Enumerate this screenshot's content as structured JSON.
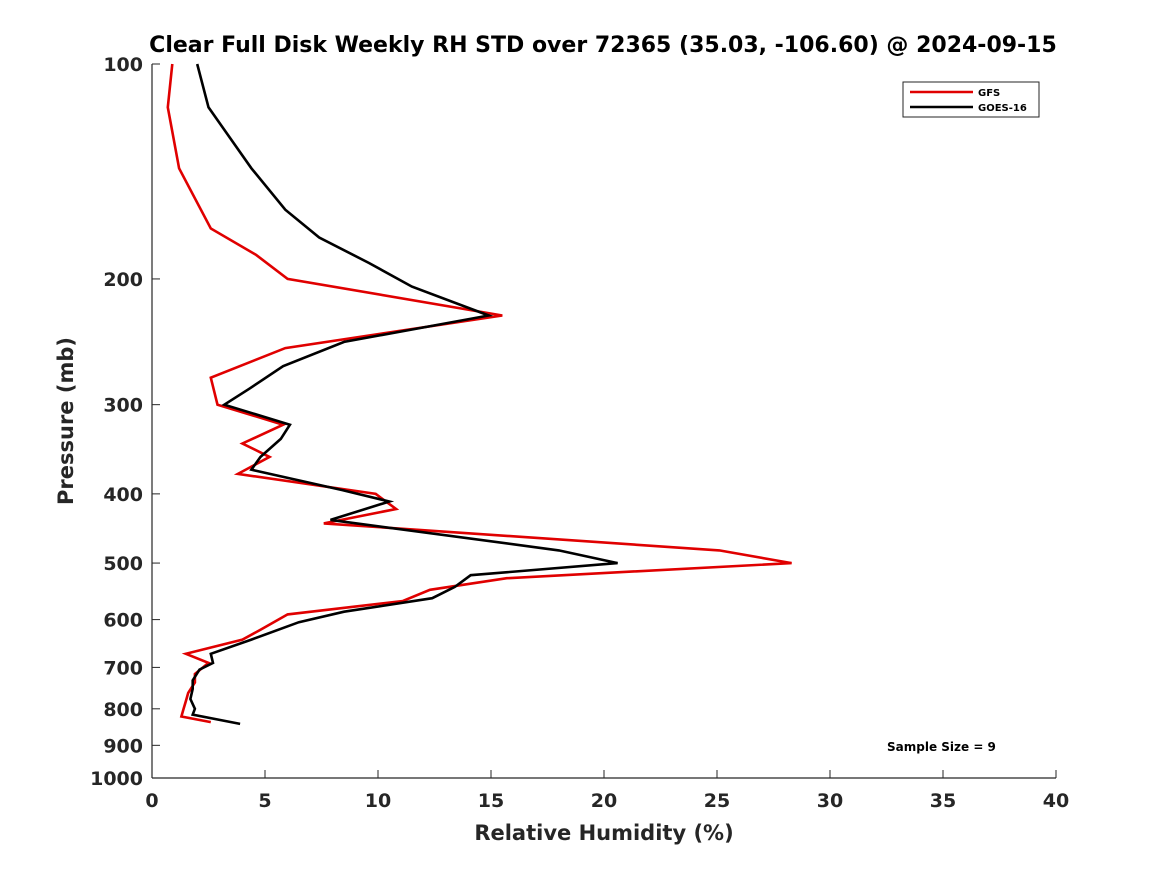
{
  "chart_data": {
    "type": "line",
    "title": "Clear Full Disk Weekly RH STD over 72365 (35.03, -106.60) @ 2024-09-15",
    "xlabel": "Relative Humidity (%)",
    "ylabel": "Pressure (mb)",
    "xlim": [
      0,
      40
    ],
    "ylim": [
      1000,
      100
    ],
    "y_scale": "log",
    "grid": false,
    "legend_position": "top-right",
    "x_ticks": [
      0,
      5,
      10,
      15,
      20,
      25,
      30,
      35,
      40
    ],
    "x_tick_labels": [
      "0",
      "5",
      "10",
      "15",
      "20",
      "25",
      "30",
      "35",
      "40"
    ],
    "y_ticks": [
      100,
      200,
      300,
      400,
      500,
      600,
      700,
      800,
      900,
      1000
    ],
    "y_tick_labels": [
      "100",
      "200",
      "300",
      "400",
      "500",
      "600",
      "700",
      "800",
      "900",
      "1000"
    ],
    "series": [
      {
        "name": "GFS",
        "color": "#e00000",
        "x": [
          0.9,
          0.7,
          1.2,
          2.6,
          4.6,
          6.0,
          15.5,
          5.9,
          2.6,
          2.9,
          5.8,
          4.0,
          5.2,
          3.8,
          9.9,
          10.8,
          7.6,
          25.1,
          28.3,
          15.7,
          12.3,
          11.1,
          6.0,
          4.8,
          4.0,
          1.5,
          2.5,
          1.9,
          1.9,
          1.6,
          1.5,
          1.4,
          1.3,
          2.6
        ],
        "y": [
          100,
          115,
          140,
          170,
          185,
          200,
          225,
          250,
          275,
          300,
          320,
          340,
          355,
          375,
          400,
          420,
          440,
          480,
          500,
          525,
          545,
          565,
          590,
          620,
          640,
          670,
          690,
          715,
          735,
          760,
          780,
          800,
          820,
          835
        ]
      },
      {
        "name": "GOES-16",
        "color": "#000000",
        "x": [
          2.0,
          2.5,
          4.4,
          5.9,
          7.4,
          9.6,
          11.5,
          14.9,
          8.5,
          5.8,
          4.3,
          3.2,
          6.1,
          5.7,
          4.8,
          4.4,
          8.4,
          10.5,
          7.9,
          18.0,
          20.6,
          14.1,
          13.4,
          12.4,
          8.5,
          6.5,
          4.4,
          2.6,
          2.7,
          2.1,
          1.8,
          1.8,
          1.7,
          1.9,
          1.8,
          3.9
        ],
        "y": [
          100,
          115,
          140,
          160,
          175,
          190,
          205,
          225,
          245,
          265,
          285,
          300,
          320,
          335,
          355,
          370,
          395,
          410,
          435,
          480,
          500,
          520,
          540,
          560,
          585,
          605,
          640,
          670,
          690,
          705,
          730,
          750,
          775,
          800,
          815,
          840
        ]
      }
    ],
    "annotations": [
      "Sample Size = 9"
    ]
  }
}
